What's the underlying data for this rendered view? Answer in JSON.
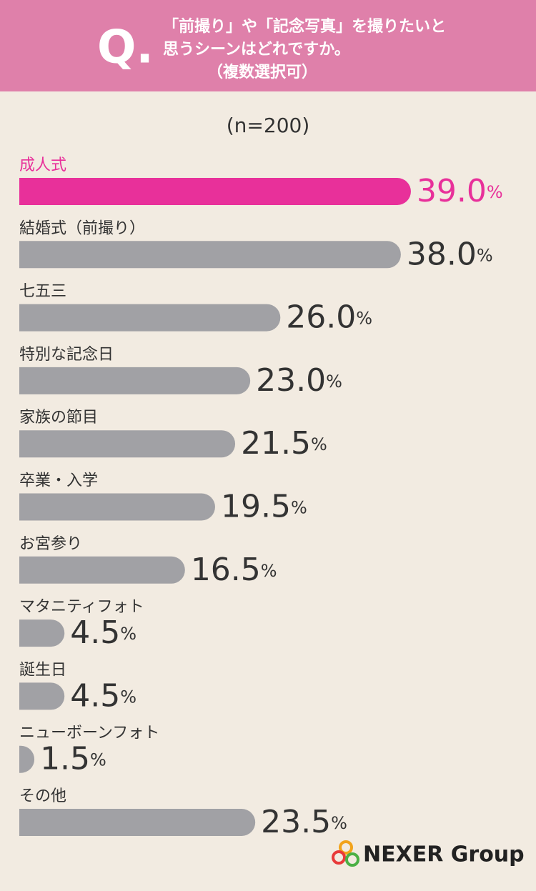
{
  "chart_data": {
    "type": "bar",
    "orientation": "horizontal",
    "badge": "Q.",
    "title": [
      "「前撮り」や「記念写真」を撮りたいと",
      "思うシーンはどれですか。",
      "（複数選択可）"
    ],
    "subtitle": "(n=200)",
    "categories": [
      "成人式",
      "結婚式（前撮り）",
      "七五三",
      "特別な記念日",
      "家族の節目",
      "卒業・入学",
      "お宮参り",
      "マタニティフォト",
      "誕生日",
      "ニューボーンフォト",
      "その他"
    ],
    "values": [
      39.0,
      38.0,
      26.0,
      23.0,
      21.5,
      19.5,
      16.5,
      4.5,
      4.5,
      1.5,
      23.5
    ],
    "value_labels": [
      "39.0%",
      "38.0%",
      "26.0%",
      "23.0%",
      "21.5%",
      "19.5%",
      "16.5%",
      "4.5%",
      "4.5%",
      "1.5%",
      "23.5%"
    ],
    "colors": [
      "#e8309a",
      "#a1a1a5",
      "#a1a1a5",
      "#a1a1a5",
      "#a1a1a5",
      "#a1a1a5",
      "#a1a1a5",
      "#a1a1a5",
      "#a1a1a5",
      "#a1a1a5",
      "#a1a1a5"
    ],
    "xlim": [
      0,
      40
    ],
    "source": "NEXER Group"
  }
}
